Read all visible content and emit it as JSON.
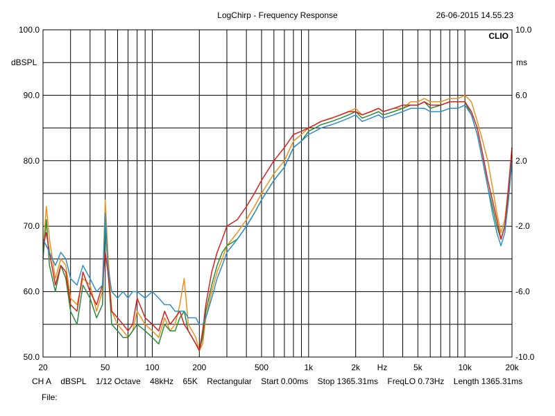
{
  "header": {
    "title": "LogChirp - Frequency Response",
    "timestamp": "26-06-2015 14.55.23",
    "brand": "CLIO"
  },
  "chart_data": {
    "type": "line",
    "x_scale": "log",
    "xlim": [
      20,
      20000
    ],
    "ylim": [
      50,
      100
    ],
    "y2lim": [
      -10,
      10
    ],
    "ylabel": "dBSPL",
    "y2label": "ms",
    "xlabel": "Hz",
    "grid": true,
    "x_ticks": [
      {
        "v": 20,
        "label": "20"
      },
      {
        "v": 50,
        "label": "50"
      },
      {
        "v": 100,
        "label": "100"
      },
      {
        "v": 200,
        "label": "200"
      },
      {
        "v": 500,
        "label": "500"
      },
      {
        "v": 1000,
        "label": "1k"
      },
      {
        "v": 2000,
        "label": "2k"
      },
      {
        "v": 5000,
        "label": "5k"
      },
      {
        "v": 10000,
        "label": "10k"
      },
      {
        "v": 20000,
        "label": "20k"
      }
    ],
    "y_ticks": [
      {
        "v": 100,
        "label": "100.0"
      },
      {
        "v": 90,
        "label": "90.0"
      },
      {
        "v": 80,
        "label": "80.0"
      },
      {
        "v": 70,
        "label": "70.0"
      },
      {
        "v": 60,
        "label": "60.0"
      },
      {
        "v": 50,
        "label": "50.0"
      }
    ],
    "y2_ticks": [
      {
        "v": 10,
        "label": "10.0"
      },
      {
        "v": 6,
        "label": "6.0"
      },
      {
        "v": 2,
        "label": "2.0"
      },
      {
        "v": -2,
        "label": "-2.0"
      },
      {
        "v": -6,
        "label": "-6.0"
      },
      {
        "v": -10,
        "label": "-10.0"
      }
    ],
    "series": [
      {
        "color": "#e8921a",
        "x": [
          20,
          21,
          22,
          24,
          26,
          28,
          30,
          33,
          36,
          40,
          44,
          48,
          50,
          52,
          55,
          60,
          65,
          70,
          75,
          80,
          90,
          100,
          110,
          120,
          130,
          140,
          150,
          160,
          170,
          180,
          190,
          200,
          210,
          220,
          240,
          260,
          280,
          300,
          350,
          400,
          450,
          500,
          600,
          700,
          800,
          900,
          1000,
          1100,
          1200,
          1400,
          1600,
          1800,
          2000,
          2200,
          2500,
          2800,
          3000,
          3500,
          4000,
          4500,
          5000,
          5500,
          6000,
          7000,
          8000,
          9000,
          10000,
          11000,
          12000,
          13000,
          14000,
          15000,
          16000,
          17000,
          18000,
          19000,
          20000
        ],
        "y": [
          66,
          73,
          68,
          62,
          65,
          64,
          59,
          58,
          62,
          61,
          57,
          60,
          74,
          66,
          57,
          55,
          54,
          53,
          54,
          57,
          55,
          54,
          53,
          56,
          54,
          55,
          58,
          62,
          55,
          54,
          53,
          51,
          52,
          56,
          60,
          63,
          65,
          67,
          69,
          71,
          73,
          75,
          78,
          80,
          83,
          84,
          85,
          85.5,
          86,
          86.5,
          87,
          87.5,
          88,
          87,
          87.5,
          88,
          87.5,
          88,
          88,
          89,
          89,
          89.5,
          89,
          89,
          89.5,
          89.5,
          90,
          89,
          86,
          83,
          80,
          76,
          72,
          69,
          71,
          76,
          82
        ]
      },
      {
        "color": "#2a8a3a",
        "x": [
          20,
          21,
          22,
          24,
          26,
          28,
          30,
          33,
          36,
          40,
          44,
          48,
          50,
          52,
          55,
          60,
          65,
          70,
          75,
          80,
          90,
          100,
          110,
          120,
          130,
          140,
          150,
          160,
          170,
          180,
          190,
          200,
          210,
          220,
          240,
          260,
          280,
          300,
          350,
          400,
          450,
          500,
          600,
          700,
          800,
          900,
          1000,
          1100,
          1200,
          1400,
          1600,
          1800,
          2000,
          2200,
          2500,
          2800,
          3000,
          3500,
          4000,
          4500,
          5000,
          5500,
          6000,
          7000,
          8000,
          9000,
          10000,
          11000,
          12000,
          13000,
          14000,
          15000,
          16000,
          17000,
          18000,
          19000,
          20000
        ],
        "y": [
          65,
          71,
          64,
          60,
          64,
          62,
          57,
          55,
          61,
          59,
          56,
          58,
          70,
          64,
          55,
          54,
          53,
          53,
          54,
          55,
          54,
          53,
          52,
          55,
          54,
          54,
          56,
          57,
          54,
          53,
          52,
          51,
          53,
          57,
          61,
          64,
          66,
          67,
          68,
          70,
          72,
          74,
          77,
          79,
          82,
          83,
          84.5,
          85,
          85.5,
          86,
          86.5,
          87,
          87.5,
          86.5,
          87,
          87.5,
          87,
          87.5,
          88,
          88.5,
          88.5,
          89,
          88,
          88.5,
          89,
          89,
          89,
          87,
          84,
          80,
          76,
          73,
          70,
          68,
          70,
          75,
          80
        ]
      },
      {
        "color": "#d62020",
        "x": [
          20,
          21,
          22,
          24,
          26,
          28,
          30,
          33,
          36,
          40,
          44,
          48,
          50,
          52,
          55,
          60,
          65,
          70,
          75,
          80,
          90,
          100,
          110,
          120,
          130,
          140,
          150,
          160,
          170,
          180,
          190,
          200,
          210,
          220,
          240,
          260,
          280,
          300,
          350,
          400,
          450,
          500,
          600,
          700,
          800,
          900,
          1000,
          1100,
          1200,
          1400,
          1600,
          1800,
          2000,
          2200,
          2500,
          2800,
          3000,
          3500,
          4000,
          4500,
          5000,
          5500,
          6000,
          7000,
          8000,
          9000,
          10000,
          11000,
          12000,
          13000,
          14000,
          15000,
          16000,
          17000,
          18000,
          19000,
          20000
        ],
        "y": [
          67,
          69,
          66,
          61,
          64,
          63,
          58,
          57,
          63,
          60,
          58,
          61,
          66,
          63,
          57,
          56,
          55,
          54,
          55,
          59,
          56,
          55,
          54,
          57,
          55,
          56,
          57,
          55,
          54,
          53,
          52,
          51,
          54,
          58,
          63,
          66,
          68,
          70,
          71,
          73,
          75,
          77,
          80,
          82,
          84,
          84.5,
          85,
          85.5,
          86,
          86.5,
          87,
          87.5,
          87.5,
          87,
          87.5,
          88,
          87.5,
          88,
          88.5,
          88.5,
          88.5,
          89,
          88.5,
          88.5,
          89,
          89,
          89,
          87.5,
          85,
          81,
          77,
          74,
          71,
          68,
          70,
          76,
          82
        ]
      },
      {
        "color": "#2f8fc8",
        "x": [
          20,
          21,
          22,
          24,
          26,
          28,
          30,
          33,
          36,
          40,
          44,
          48,
          50,
          52,
          55,
          60,
          65,
          70,
          75,
          80,
          90,
          100,
          110,
          120,
          130,
          140,
          150,
          160,
          170,
          180,
          190,
          200,
          210,
          220,
          240,
          260,
          280,
          300,
          350,
          400,
          450,
          500,
          600,
          700,
          800,
          900,
          1000,
          1100,
          1200,
          1400,
          1600,
          1800,
          2000,
          2200,
          2500,
          2800,
          3000,
          3500,
          4000,
          4500,
          5000,
          5500,
          6000,
          7000,
          8000,
          9000,
          10000,
          11000,
          12000,
          13000,
          14000,
          15000,
          16000,
          17000,
          18000,
          19000,
          20000
        ],
        "y": [
          68,
          67,
          66,
          64,
          66,
          65,
          62,
          61,
          64,
          62,
          60,
          61,
          72,
          64,
          60,
          59,
          60,
          59,
          60,
          60,
          59,
          60,
          59,
          58,
          58,
          57,
          57,
          57,
          56,
          56,
          56,
          55,
          55,
          56,
          59,
          62,
          64,
          66,
          68,
          70,
          72,
          74,
          77,
          79,
          82,
          83,
          84,
          84.5,
          85,
          85.5,
          86,
          86.5,
          87,
          86,
          86.5,
          87,
          86.5,
          87,
          87.5,
          88,
          88,
          88,
          87.5,
          87.5,
          88,
          88,
          88.5,
          87,
          84,
          80,
          76,
          72,
          69,
          67,
          69,
          74,
          80
        ]
      }
    ]
  },
  "footer": {
    "channel": "CH A",
    "unit": "dBSPL",
    "smoothing": "1/12 Octave",
    "sample_rate": "48kHz",
    "fft_size": "65K",
    "window": "Rectangular",
    "start": "Start 0.00ms",
    "stop": "Stop 1365.31ms",
    "freq_lo": "FreqLO 0.73Hz",
    "length": "Length 1365.31ms",
    "file_label": "File:"
  }
}
